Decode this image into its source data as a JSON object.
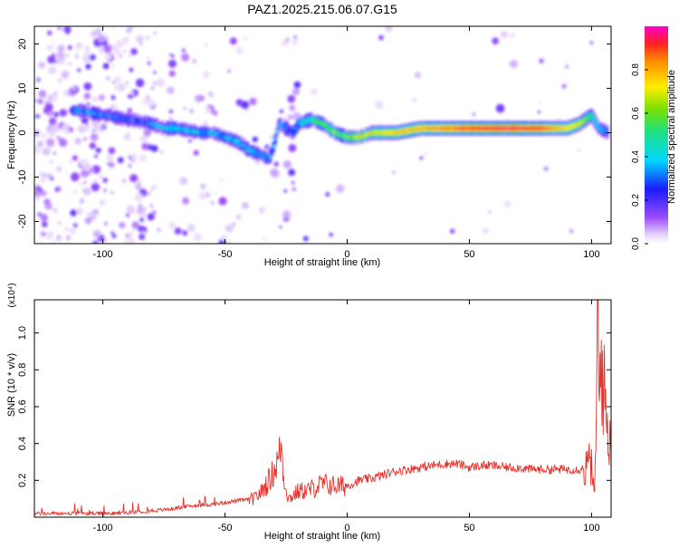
{
  "title": "PAZ1.2025.215.06.07.G15",
  "colors": {
    "snr_line": "#e8302a",
    "axis": "#000000"
  },
  "chart_data": [
    {
      "type": "heatmap",
      "title": "PAZ1.2025.215.06.07.G15",
      "xlabel": "Height of straight line (km)",
      "ylabel": "Frequency (Hz)",
      "xlim": [
        -128,
        108
      ],
      "ylim": [
        -25,
        24
      ],
      "xticks": [
        -100,
        -50,
        0,
        50,
        100
      ],
      "xtick_labels": [
        "-100",
        "-50",
        "0",
        "50",
        "100"
      ],
      "yticks": [
        -20,
        -10,
        0,
        10,
        20
      ],
      "ytick_labels": [
        "-20",
        "-10",
        "0",
        "10",
        "20"
      ],
      "colorbar": {
        "label": "Normalized spectral amplitude",
        "range": [
          0,
          1
        ],
        "ticks": [
          0.0,
          0.2,
          0.4,
          0.6,
          0.8
        ],
        "tick_labels": [
          "0.0",
          "0.2",
          "0.4",
          "0.6",
          "0.8"
        ],
        "colormap": "rainbow"
      },
      "ridge": {
        "description_points_x": [
          -110,
          -100,
          -90,
          -80,
          -75,
          -70,
          -60,
          -55,
          -50,
          -45,
          -40,
          -35,
          -32,
          -30,
          -28,
          -25,
          -22,
          -20,
          -15,
          -10,
          -5,
          0,
          5,
          10,
          20,
          30,
          50,
          70,
          80,
          90,
          95,
          100,
          103,
          107
        ],
        "frequency_hz": [
          5,
          4,
          3,
          2,
          1,
          1,
          0,
          0,
          -1,
          -2,
          -4,
          -5,
          -6,
          -3,
          2,
          1,
          0,
          2,
          3,
          2,
          0,
          -1,
          -1,
          0,
          0,
          1,
          1,
          1,
          1,
          1,
          2,
          4,
          1,
          0
        ],
        "amplitude": [
          0.3,
          0.3,
          0.25,
          0.3,
          0.35,
          0.4,
          0.35,
          0.35,
          0.35,
          0.35,
          0.35,
          0.3,
          0.3,
          0.3,
          0.3,
          0.3,
          0.3,
          0.35,
          0.45,
          0.55,
          0.55,
          0.6,
          0.65,
          0.7,
          0.75,
          0.8,
          0.92,
          0.95,
          0.9,
          0.75,
          0.7,
          0.5,
          0.35,
          0.3
        ]
      },
      "grid": false
    },
    {
      "type": "line",
      "xlabel": "Height of straight line (km)",
      "ylabel": "SNR (10 * v/v)",
      "y_multiplier": "(x10⁴)",
      "xlim": [
        -128,
        108
      ],
      "ylim": [
        0,
        1.18
      ],
      "xticks": [
        -100,
        -50,
        0,
        50,
        100
      ],
      "xtick_labels": [
        "-100",
        "-50",
        "0",
        "50",
        "100"
      ],
      "yticks": [
        0.2,
        0.4,
        0.6,
        0.8,
        1.0
      ],
      "ytick_labels": [
        "0.2",
        "0.4",
        "0.6",
        "0.8",
        "1.0"
      ],
      "series": [
        {
          "x": [
            -128,
            -110,
            -95,
            -85,
            -75,
            -70,
            -65,
            -55,
            -45,
            -38,
            -35,
            -32,
            -30,
            -28,
            -27,
            -26,
            -25,
            -24,
            -22,
            -20,
            -15,
            -10,
            -5,
            0,
            5,
            10,
            15,
            20,
            25,
            30,
            35,
            40,
            45,
            50,
            55,
            60,
            65,
            70,
            75,
            80,
            85,
            90,
            95,
            98,
            100,
            101,
            102,
            102.5,
            103,
            104,
            105,
            106,
            107,
            108
          ],
          "y": [
            0.02,
            0.02,
            0.02,
            0.03,
            0.04,
            0.05,
            0.06,
            0.07,
            0.09,
            0.1,
            0.14,
            0.2,
            0.25,
            0.32,
            0.4,
            0.22,
            0.16,
            0.1,
            0.12,
            0.14,
            0.15,
            0.18,
            0.17,
            0.17,
            0.2,
            0.21,
            0.23,
            0.25,
            0.26,
            0.27,
            0.28,
            0.29,
            0.29,
            0.27,
            0.28,
            0.28,
            0.27,
            0.27,
            0.26,
            0.26,
            0.26,
            0.26,
            0.26,
            0.27,
            0.3,
            0.1,
            0.5,
            1.18,
            0.6,
            0.9,
            0.7,
            0.55,
            0.45,
            0.45
          ]
        }
      ],
      "grid": false
    }
  ]
}
